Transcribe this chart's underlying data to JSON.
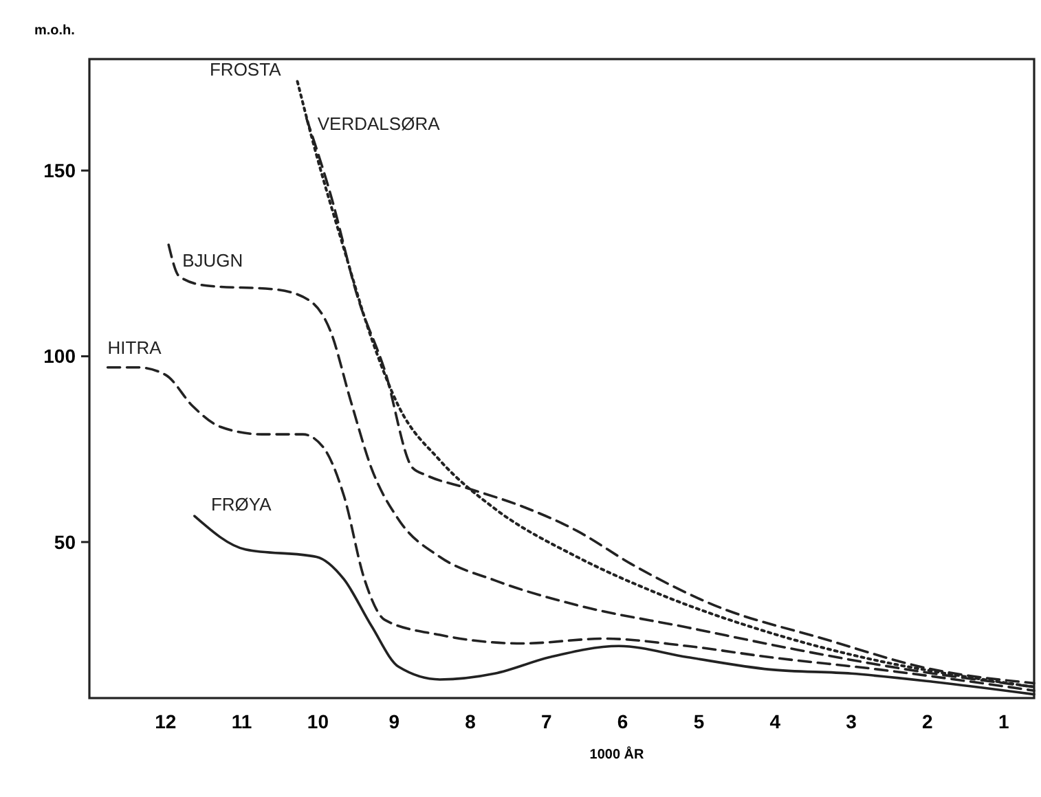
{
  "chart_data": {
    "type": "line",
    "ylabel": "m.o.h.",
    "xlabel": "1000 ÅR",
    "xlim": [
      13,
      0.6
    ],
    "ylim": [
      8,
      180
    ],
    "xticks": [
      12,
      11,
      10,
      9,
      8,
      7,
      6,
      5,
      4,
      3,
      2,
      1
    ],
    "yticks": [
      50,
      100,
      150
    ],
    "grid": false,
    "marker": "none",
    "series": [
      {
        "name": "FROSTA",
        "color": "#222222",
        "line_style": "dotted",
        "x": [
          10.27,
          10.03,
          9.66,
          9.3,
          8.94,
          8.4,
          7.68,
          6.6,
          5.52,
          4.07,
          2.64,
          1.57,
          0.6
        ],
        "values": [
          174,
          155,
          129,
          105,
          86.5,
          72,
          59,
          46,
          36,
          25.6,
          18,
          14,
          11
        ]
      },
      {
        "name": "VERDALSØRA",
        "color": "#222222",
        "line_style": "dashed",
        "x": [
          10.15,
          9.84,
          9.48,
          9.12,
          8.76,
          8.58,
          8.04,
          7.32,
          6.6,
          5.88,
          4.8,
          3.37,
          1.93,
          0.6
        ],
        "values": [
          164,
          144,
          116,
          96,
          70,
          68,
          64.5,
          59.6,
          53,
          44,
          33,
          24,
          15.7,
          12
        ]
      },
      {
        "name": "BJUGN",
        "color": "#222222",
        "line_style": "dashed",
        "x": [
          11.96,
          11.82,
          11.46,
          10.56,
          10.11,
          9.84,
          9.57,
          9.3,
          8.94,
          8.4,
          7.68,
          6.6,
          5.15,
          3.71,
          2.27,
          0.6
        ],
        "values": [
          130,
          121.5,
          119,
          118,
          115,
          107,
          88,
          70,
          56,
          46,
          39.7,
          33,
          27,
          21,
          15.7,
          11
        ]
      },
      {
        "name": "HITRA",
        "color": "#222222",
        "line_style": "dashed",
        "x": [
          12.76,
          12.36,
          12,
          11.64,
          11.28,
          10.74,
          10.2,
          9.93,
          9.66,
          9.39,
          9.12,
          8.4,
          7.32,
          6.24,
          5.15,
          4.07,
          2.64,
          0.6
        ],
        "values": [
          97,
          97,
          95,
          86.5,
          81,
          79,
          79,
          75.5,
          62.5,
          40,
          29,
          25,
          22.7,
          24,
          22,
          19,
          15.7,
          10
        ]
      },
      {
        "name": "FRØYA",
        "color": "#222222",
        "line_style": "solid",
        "x": [
          11.62,
          10.95,
          10.02,
          9.66,
          9.3,
          8.94,
          8.4,
          7.68,
          6.96,
          6.05,
          5.15,
          4.07,
          3.0,
          1.93,
          0.6
        ],
        "values": [
          57,
          48,
          46,
          40,
          27.5,
          16.4,
          13,
          14.6,
          19,
          22,
          19,
          15.7,
          14.6,
          12.4,
          9
        ]
      }
    ]
  }
}
